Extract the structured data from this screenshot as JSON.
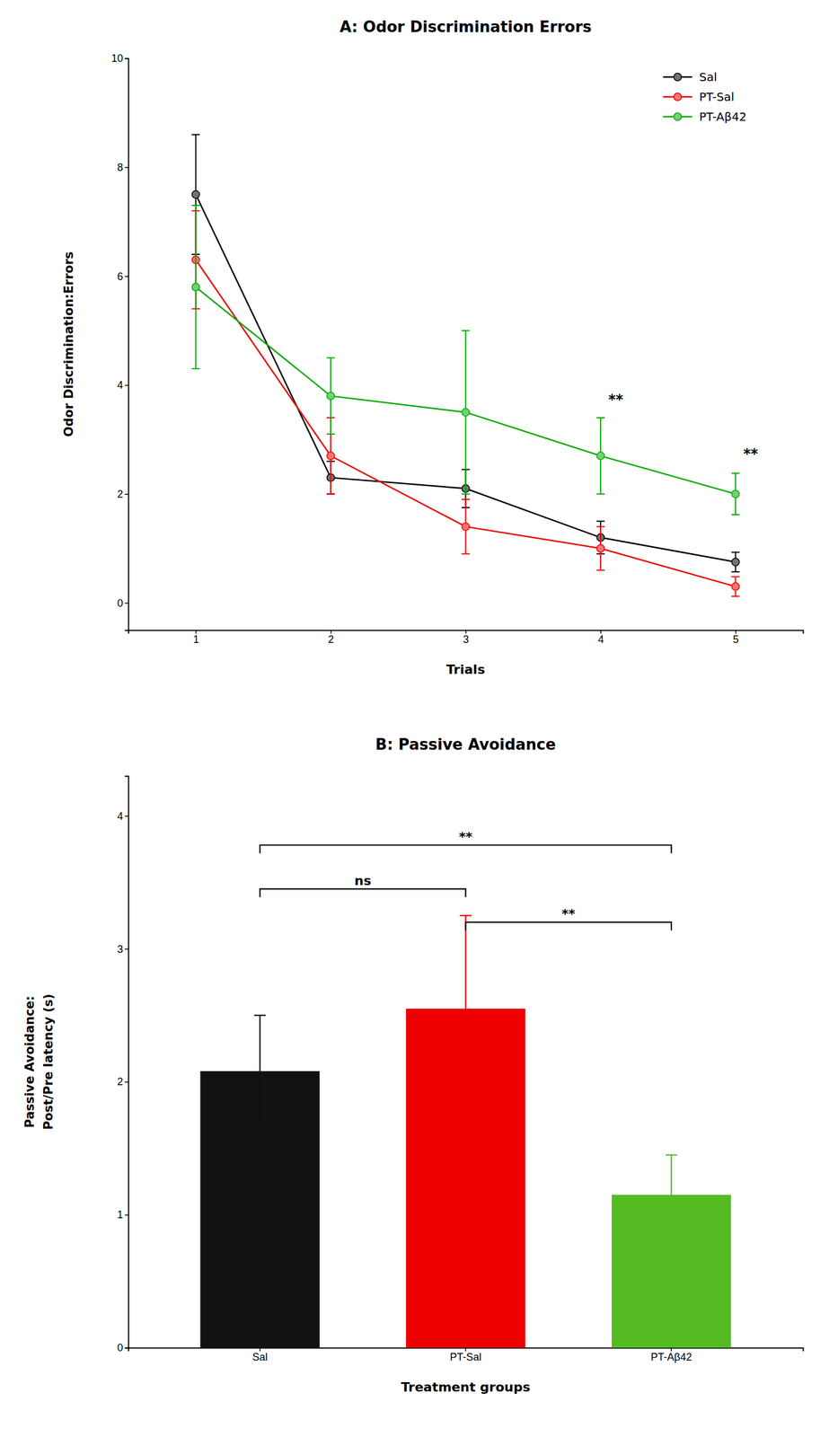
{
  "chart_data": [
    {
      "type": "line",
      "title": "A: Odor Discrimination Errors",
      "x_label": "Trials",
      "y_label": "Odor Discrimination:Errors",
      "x": [
        1,
        2,
        3,
        4,
        5
      ],
      "xlim": [
        0.5,
        5.5
      ],
      "ylim": [
        -0.5,
        10
      ],
      "xticks": [
        1,
        2,
        3,
        4,
        5
      ],
      "yticks": [
        0,
        2,
        4,
        6,
        8,
        10
      ],
      "grid": false,
      "legend": "upper right",
      "series": [
        {
          "name": "Sal",
          "color": "#000000",
          "marker": "circle",
          "values": [
            7.5,
            2.3,
            2.1,
            1.2,
            0.75
          ],
          "errors": [
            1.1,
            0.3,
            0.35,
            0.3,
            0.18
          ]
        },
        {
          "name": "PT-Sal",
          "color": "#EE0000",
          "marker": "circle",
          "values": [
            6.3,
            2.7,
            1.4,
            1.0,
            0.3
          ],
          "errors": [
            0.9,
            0.7,
            0.5,
            0.4,
            0.18
          ]
        },
        {
          "name": "PT-Aβ42",
          "color": "#00AA00",
          "marker": "circle",
          "values": [
            5.8,
            3.8,
            3.5,
            2.7,
            2.0
          ],
          "errors": [
            1.5,
            0.7,
            1.5,
            0.7,
            0.38
          ]
        }
      ],
      "annotations": [
        {
          "text": "**",
          "x": 4,
          "y": 3.65
        },
        {
          "text": "**",
          "x": 5,
          "y": 2.65
        }
      ]
    },
    {
      "type": "bar",
      "title": "B: Passive Avoidance",
      "x_label": "Treatment groups",
      "y_label": [
        "Passive Avoidance:",
        "Post/Pre latency (s)"
      ],
      "categories": [
        "Sal",
        "PT-Sal",
        "PT-Aβ42"
      ],
      "values": [
        2.08,
        2.55,
        1.15
      ],
      "errors": [
        0.42,
        0.7,
        0.3
      ],
      "colors": [
        "#111111",
        "#EE0000",
        "#55BB22"
      ],
      "ylim": [
        0,
        4.3
      ],
      "yticks": [
        0,
        1,
        2,
        3,
        4
      ],
      "grid": false,
      "annotations": [
        {
          "text": "ns",
          "x1": "Sal",
          "x2": "PT-Sal",
          "y": 3.45
        },
        {
          "text": "**",
          "x1": "PT-Sal",
          "x2": "PT-Aβ42",
          "y": 3.2
        },
        {
          "text": "**",
          "x1": "Sal",
          "x2": "PT-Aβ42",
          "y": 3.78
        }
      ]
    }
  ]
}
